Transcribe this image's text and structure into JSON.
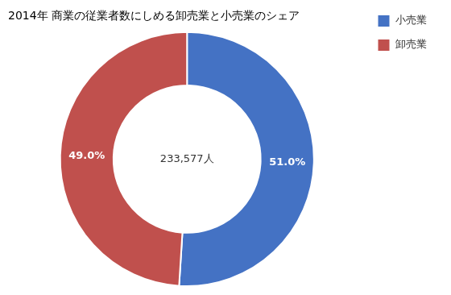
{
  "chart_data": {
    "type": "doughnut",
    "title": "2014年 商業の従業者数にしめる卸売業と小売業のシェア",
    "categories": [
      "小売業",
      "卸売業"
    ],
    "values": [
      51.0,
      49.0
    ],
    "value_labels": [
      "51.0%",
      "49.0%"
    ],
    "colors": [
      "#4472C4",
      "#C0504D"
    ],
    "data_labels": true,
    "annotations": [
      "233,577人"
    ],
    "legend": "right"
  }
}
